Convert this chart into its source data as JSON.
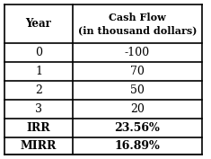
{
  "col1_header": "Year",
  "col2_header": "Cash Flow\n(in thousand dollars)",
  "rows": [
    [
      "0",
      "-100"
    ],
    [
      "1",
      "70"
    ],
    [
      "2",
      "50"
    ],
    [
      "3",
      "20"
    ]
  ],
  "summary_rows": [
    [
      "IRR",
      "23.56%"
    ],
    [
      "MIRR",
      "16.89%"
    ]
  ],
  "bg_color": "#ffffff",
  "border_color": "#000000",
  "text_color": "#000000"
}
